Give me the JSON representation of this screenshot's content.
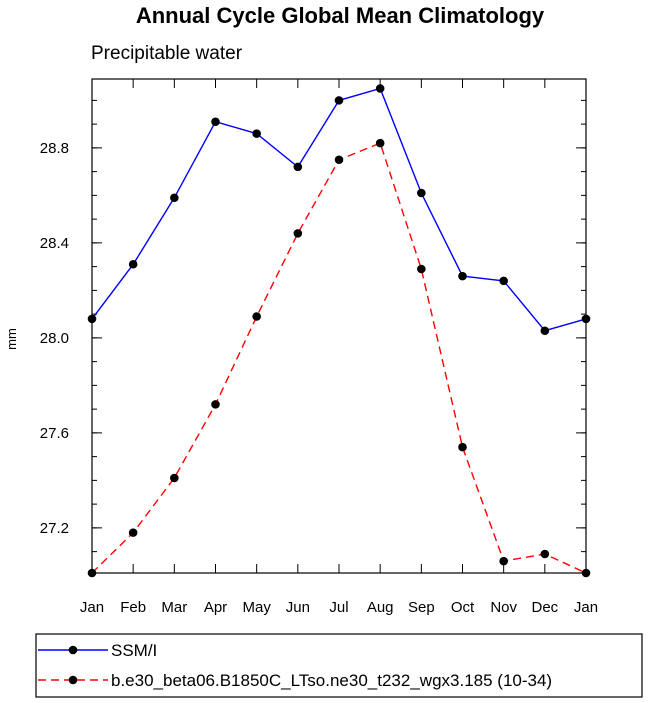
{
  "chart_data": {
    "type": "line",
    "title": "Annual Cycle Global Mean Climatology",
    "subtitle": "Precipitable water",
    "xlabel": "",
    "ylabel": "mm",
    "categories": [
      "Jan",
      "Feb",
      "Mar",
      "Apr",
      "May",
      "Jun",
      "Jul",
      "Aug",
      "Sep",
      "Oct",
      "Nov",
      "Dec",
      "Jan"
    ],
    "ylim": [
      27.01,
      29.09
    ],
    "yticks": [
      27.2,
      27.6,
      28.0,
      28.4,
      28.8
    ],
    "ytick_labels": [
      "27.2",
      "27.6",
      "28.0",
      "28.4",
      "28.8"
    ],
    "grid": false,
    "legend_position": "bottom",
    "series": [
      {
        "name": "SSM/I",
        "color": "#0000ff",
        "dash": "solid",
        "values": [
          28.08,
          28.31,
          28.59,
          28.91,
          28.86,
          28.72,
          29.0,
          29.05,
          28.61,
          28.26,
          28.24,
          28.03,
          28.08
        ]
      },
      {
        "name": "b.e30_beta06.B1850C_LTso.ne30_t232_wgx3.185 (10-34)",
        "color": "#ff0000",
        "dash": "dashed",
        "values": [
          27.01,
          27.18,
          27.41,
          27.72,
          28.09,
          28.44,
          28.75,
          28.82,
          28.29,
          27.54,
          27.06,
          27.09,
          27.01
        ]
      }
    ]
  }
}
